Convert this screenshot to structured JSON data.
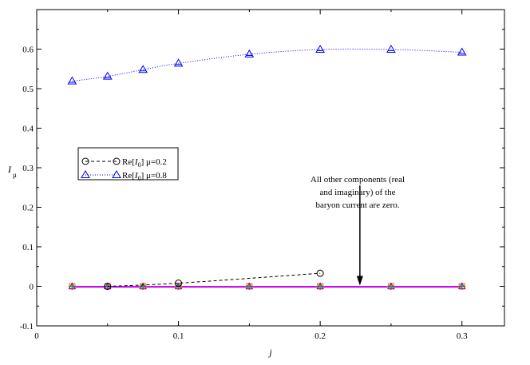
{
  "chart_data": {
    "type": "scatter",
    "xlabel": "j",
    "ylabel": "I",
    "ylabel_sub": "μ",
    "xlim": [
      0,
      0.33
    ],
    "ylim": [
      -0.1,
      0.7
    ],
    "xticks": [
      0,
      0.1,
      0.2,
      0.3
    ],
    "yticks": [
      -0.1,
      0,
      0.1,
      0.2,
      0.3,
      0.4,
      0.5,
      0.6
    ],
    "xtick_labels": [
      "0",
      "0.1",
      "0.2",
      "0.3"
    ],
    "ytick_labels": [
      "-0.1",
      "0",
      "0.1",
      "0.2",
      "0.3",
      "0.4",
      "0.5",
      "0.6"
    ],
    "grid": false,
    "legend_position": "middle-left",
    "series": [
      {
        "name_prefix": "Re[",
        "name_italic": "I",
        "name_sub": "0",
        "name_suffix": "] μ=0.2",
        "marker": "circle",
        "line": "dashed",
        "color": "#000000",
        "x": [
          0.05,
          0.1,
          0.2
        ],
        "y": [
          0.0,
          0.008,
          0.033
        ]
      },
      {
        "name_prefix": "Re[",
        "name_italic": "I",
        "name_sub": "0",
        "name_suffix": "] μ=0.8",
        "marker": "triangle",
        "line": "dotted",
        "color": "#0000ff",
        "x": [
          0.025,
          0.05,
          0.075,
          0.1,
          0.15,
          0.2,
          0.25,
          0.3
        ],
        "y": [
          0.519,
          0.531,
          0.548,
          0.564,
          0.587,
          0.599,
          0.599,
          0.592
        ]
      }
    ],
    "zero_components": {
      "x": [
        0.025,
        0.05,
        0.075,
        0.1,
        0.15,
        0.2,
        0.25,
        0.3
      ],
      "colors": [
        "#ff7f00",
        "#d4a017",
        "#2ca02c",
        "#9400d3",
        "#ff00ff"
      ]
    },
    "annotation": {
      "lines": [
        "All other components (real",
        "and imaginary) of the",
        "baryon current are zero."
      ],
      "arrow_x": 0.228,
      "arrow_from_y": 0.255,
      "arrow_to_y": 0.002
    }
  }
}
